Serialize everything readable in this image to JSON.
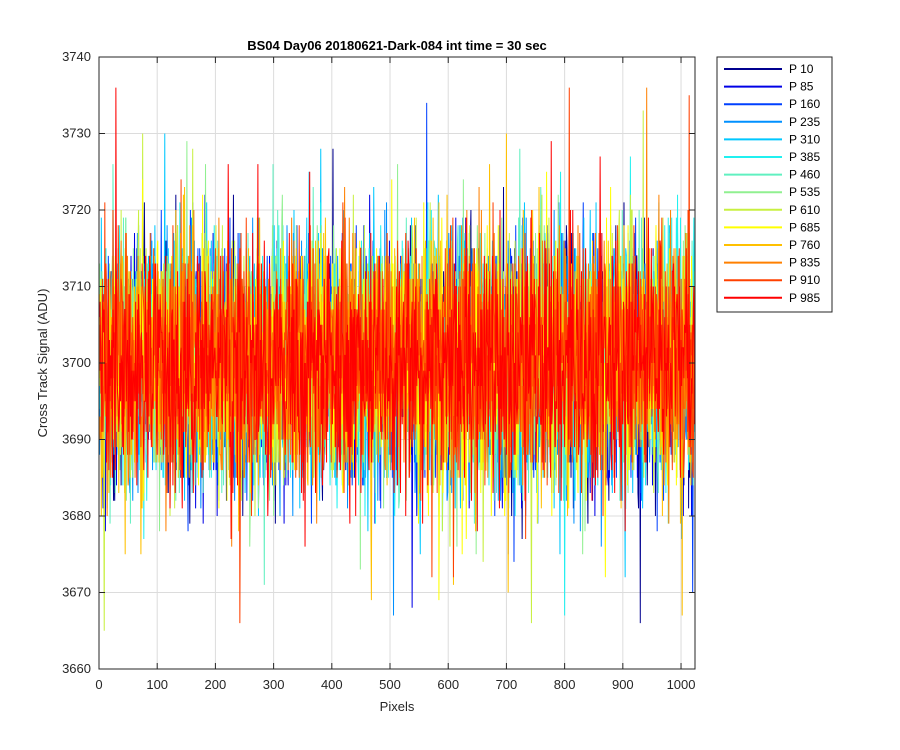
{
  "chart_data": {
    "type": "line",
    "title": "BS04 Day06 20180621-Dark-084 int time = 30 sec",
    "xlabel": "Pixels",
    "ylabel": "Cross Track Signal (ADU)",
    "xlim": [
      0,
      1024
    ],
    "ylim": [
      3660,
      3740
    ],
    "xticks": [
      "0",
      "100",
      "200",
      "300",
      "400",
      "500",
      "600",
      "700",
      "800",
      "900",
      "1000"
    ],
    "yticks": [
      "3660",
      "3670",
      "3680",
      "3690",
      "3700",
      "3710",
      "3720",
      "3730",
      "3740"
    ],
    "grid": true,
    "legend_position": "outside-right-top",
    "noise_profile": {
      "center": 3700,
      "std": 8,
      "min": 3664,
      "max": 3736
    },
    "series": [
      {
        "name": "P 10",
        "color": "#00008f"
      },
      {
        "name": "P 85",
        "color": "#0000e6"
      },
      {
        "name": "P 160",
        "color": "#0040ff"
      },
      {
        "name": "P 235",
        "color": "#0090ff"
      },
      {
        "name": "P 310",
        "color": "#00c8ff"
      },
      {
        "name": "P 385",
        "color": "#20f0f0"
      },
      {
        "name": "P 460",
        "color": "#60f0c0"
      },
      {
        "name": "P 535",
        "color": "#90f090"
      },
      {
        "name": "P 610",
        "color": "#c8f040"
      },
      {
        "name": "P 685",
        "color": "#ffff00"
      },
      {
        "name": "P 760",
        "color": "#ffc000"
      },
      {
        "name": "P 835",
        "color": "#ff8000"
      },
      {
        "name": "P 910",
        "color": "#ff4000"
      },
      {
        "name": "P 985",
        "color": "#ff0000"
      }
    ]
  }
}
